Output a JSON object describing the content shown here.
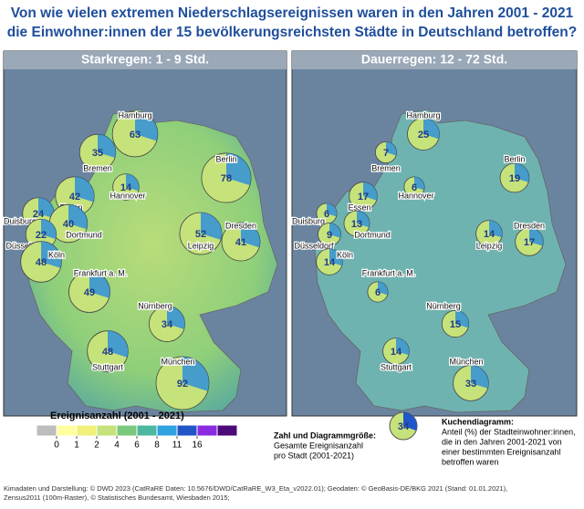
{
  "title": [
    "Von wie vielen extremen Niederschlagsereignissen waren in den Jahren 2001 - 2021",
    "die Einwohner:innen der 15 bevölkerungsreichsten Städte in Deutschland betroffen?"
  ],
  "panels": [
    {
      "title": "Starkregen: 1 - 9 Std.",
      "cities": [
        {
          "name": "Hamburg",
          "value": 63
        },
        {
          "name": "Bremen",
          "value": 35
        },
        {
          "name": "Hannover",
          "value": 14
        },
        {
          "name": "Berlin",
          "value": 78
        },
        {
          "name": "Duisburg",
          "value": 24
        },
        {
          "name": "Essen",
          "value": 42
        },
        {
          "name": "Dortmund",
          "value": 40
        },
        {
          "name": "Düsseldorf",
          "value": 22
        },
        {
          "name": "Köln",
          "value": 48
        },
        {
          "name": "Leipzig",
          "value": 52
        },
        {
          "name": "Dresden",
          "value": 41
        },
        {
          "name": "Frankfurt a. M.",
          "value": 49
        },
        {
          "name": "Nürnberg",
          "value": 34
        },
        {
          "name": "Stuttgart",
          "value": 48
        },
        {
          "name": "München",
          "value": 92
        }
      ]
    },
    {
      "title": "Dauerregen: 12 - 72 Std.",
      "cities": [
        {
          "name": "Hamburg",
          "value": 25
        },
        {
          "name": "Bremen",
          "value": 7
        },
        {
          "name": "Hannover",
          "value": 6
        },
        {
          "name": "Berlin",
          "value": 19
        },
        {
          "name": "Duisburg",
          "value": 6
        },
        {
          "name": "Essen",
          "value": 17
        },
        {
          "name": "Dortmund",
          "value": 13
        },
        {
          "name": "Düsseldorf",
          "value": 9
        },
        {
          "name": "Köln",
          "value": 14
        },
        {
          "name": "Leipzig",
          "value": 14
        },
        {
          "name": "Dresden",
          "value": 17
        },
        {
          "name": "Frankfurt a. M.",
          "value": 6
        },
        {
          "name": "Nürnberg",
          "value": 15
        },
        {
          "name": "Stuttgart",
          "value": 14
        },
        {
          "name": "München",
          "value": 33
        }
      ]
    }
  ],
  "legend": {
    "title": "Ereignisanzahl (2001 - 2021)",
    "ticks": [
      0,
      1,
      2,
      4,
      6,
      8,
      11,
      16
    ],
    "colors": [
      "#bdbdbd",
      "#ffffa0",
      "#f0f07a",
      "#c6e27a",
      "#7cc87c",
      "#4cb8a0",
      "#2fa3e0",
      "#2255c8",
      "#8a2be2",
      "#4b0a78"
    ]
  },
  "size_legend": {
    "lines": [
      "Zahl und Diagrammgröße:",
      "Gesamte Ereignisanzahl",
      "pro Stadt (2001-2021)"
    ],
    "example": 34
  },
  "pie_legend": {
    "lines": [
      "Kuchendiagramm:",
      "Anteil (%) der Stadteinwohner:innen,",
      "die in den Jahren 2001-2021 von",
      "einer bestimmten Ereignisanzahl",
      "betroffen waren"
    ]
  },
  "credits": [
    "Kimadaten und Darstellung: © DWD 2023 (CatRaRE Daten: 10.5676/DWD/CatRaRE_W3_Eta_v2022.01); Geodaten: © GeoBasis-DE/BKG 2021 (Stand: 01.01.2021),",
    "Zensus2011 (100m-Raster), © Statistisches Bundesamt, Wiesbaden 2015;"
  ]
}
